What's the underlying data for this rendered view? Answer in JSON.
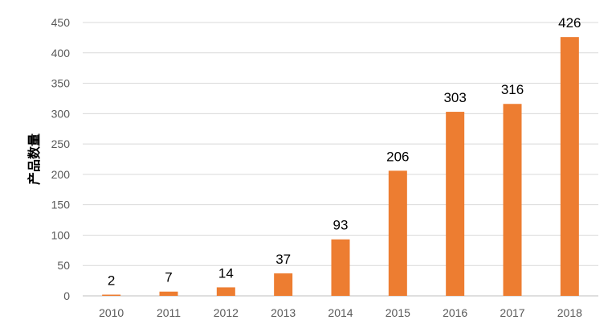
{
  "chart_data": {
    "type": "bar",
    "title": "",
    "xlabel": "",
    "ylabel": "产品数量",
    "categories": [
      "2010",
      "2011",
      "2012",
      "2013",
      "2014",
      "2015",
      "2016",
      "2017",
      "2018"
    ],
    "values": [
      2,
      7,
      14,
      37,
      93,
      206,
      303,
      316,
      426
    ],
    "ylim": [
      0,
      450
    ],
    "yticks": [
      "0",
      "50",
      "100",
      "150",
      "200",
      "250",
      "300",
      "350",
      "400",
      "450"
    ],
    "grid": true,
    "legend": "none",
    "bar_color": "#ED7D31",
    "data_labels": true
  }
}
